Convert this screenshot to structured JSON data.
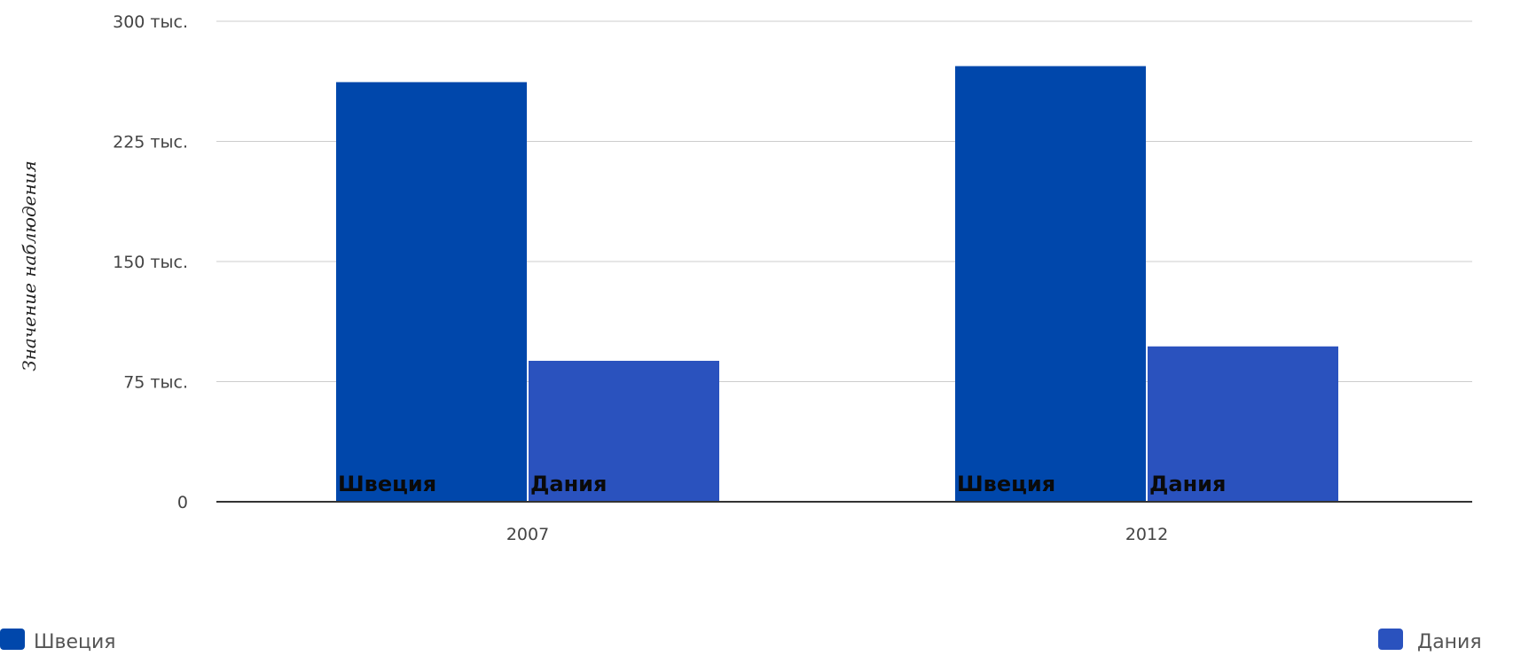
{
  "chart_data": {
    "type": "bar",
    "categories": [
      "2007",
      "2012"
    ],
    "series": [
      {
        "name": "Швеция",
        "values": [
          262000,
          272000
        ],
        "color": "#0047AB"
      },
      {
        "name": "Дания",
        "values": [
          88000,
          97000
        ],
        "color": "#2A52BE"
      }
    ],
    "title": "",
    "xlabel": "",
    "ylabel": "Значение наблюдения",
    "ylim": [
      0,
      300000
    ],
    "yticks": [
      {
        "value": 0,
        "label": "0"
      },
      {
        "value": 75000,
        "label": "75 тыс."
      },
      {
        "value": 150000,
        "label": "150 тыс."
      },
      {
        "value": 225000,
        "label": "225 тыс."
      },
      {
        "value": 300000,
        "label": "300 тыс."
      }
    ],
    "bar_labels": [
      [
        "Швеция",
        "Дания"
      ],
      [
        "Швеция",
        "Дания"
      ]
    ],
    "grid": true,
    "legend_placement": "bottom"
  }
}
